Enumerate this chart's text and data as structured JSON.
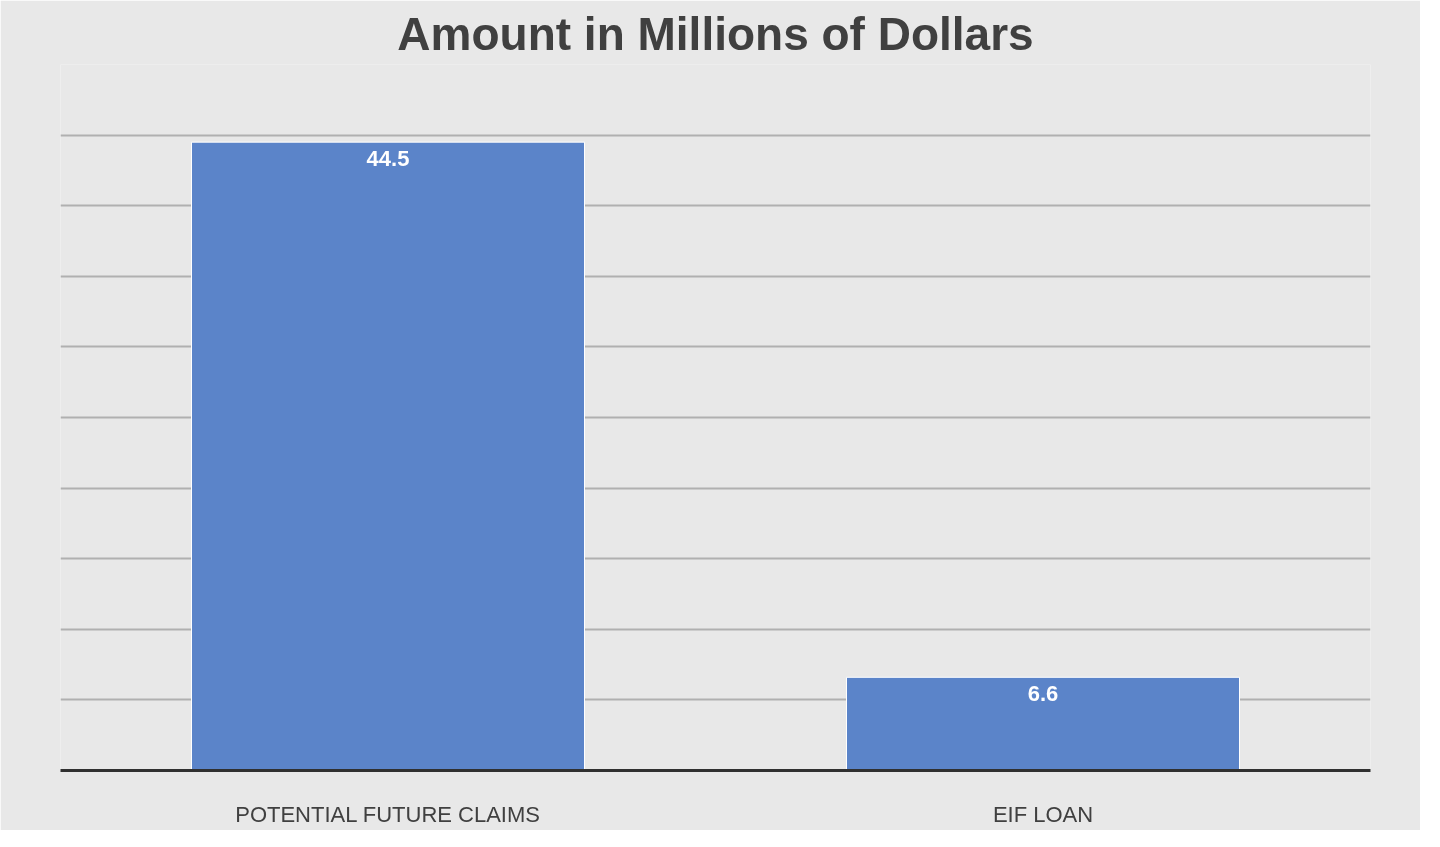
{
  "chart_data": {
    "type": "bar",
    "title": "Amount in Millions of Dollars",
    "categories": [
      "POTENTIAL FUTURE CLAIMS",
      "EIF LOAN"
    ],
    "values": [
      44.5,
      6.6
    ],
    "color": "#5b84c9",
    "data_labels": true,
    "ylim": [
      0,
      50
    ],
    "yticks": [
      {
        "value": 0,
        "label": null
      },
      {
        "value": 5,
        "label": null
      },
      {
        "value": 10,
        "label": null
      },
      {
        "value": 15,
        "label": null
      },
      {
        "value": 20,
        "label": null
      },
      {
        "value": 25,
        "label": null
      },
      {
        "value": 30,
        "label": null
      },
      {
        "value": 35,
        "label": null
      },
      {
        "value": 40,
        "label": null
      },
      {
        "value": 45,
        "label": null
      },
      {
        "value": 50,
        "label": null
      }
    ],
    "grid": "y",
    "tick_labels": "x"
  }
}
